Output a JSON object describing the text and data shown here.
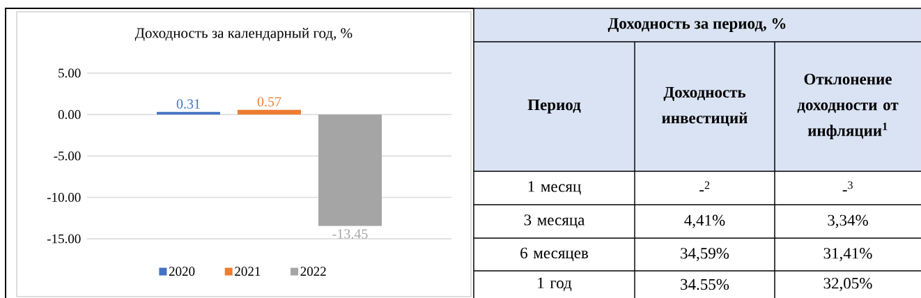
{
  "chart_data": [
    {
      "type": "bar",
      "title": "Доходность за календарный год, %",
      "categories": [
        null
      ],
      "series": [
        {
          "name": "2020",
          "color": "#4472c4",
          "values": [
            0.31
          ]
        },
        {
          "name": "2021",
          "color": "#ed7d31",
          "values": [
            0.57
          ]
        },
        {
          "name": "2022",
          "color": "#a5a5a5",
          "values": [
            -13.45
          ]
        }
      ],
      "ylim": [
        -15,
        5
      ],
      "yticks": [
        {
          "value": 5,
          "label": "5.00"
        },
        {
          "value": 0,
          "label": "0.00"
        },
        {
          "value": -5,
          "label": "-5.00"
        },
        {
          "value": -10,
          "label": "-10.00"
        },
        {
          "value": -15,
          "label": "-15.00"
        }
      ],
      "grid": "y",
      "legend": "bottom",
      "data_labels": true,
      "tick_labels": "y"
    },
    {
      "type": "other",
      "annotations": [
        "Доходность за период, %",
        "Период",
        "Доходность инвестиций",
        "Отклонение доходности от инфляции$^{1}$",
        "1 месяц",
        "-$^{2}$",
        "-$^{3}$",
        "3 месяца",
        "4,41%",
        "3,34%",
        "6 месяцев",
        "34,59%",
        "31,41%",
        "1 год",
        "34.55%",
        "32,05%"
      ]
    }
  ]
}
